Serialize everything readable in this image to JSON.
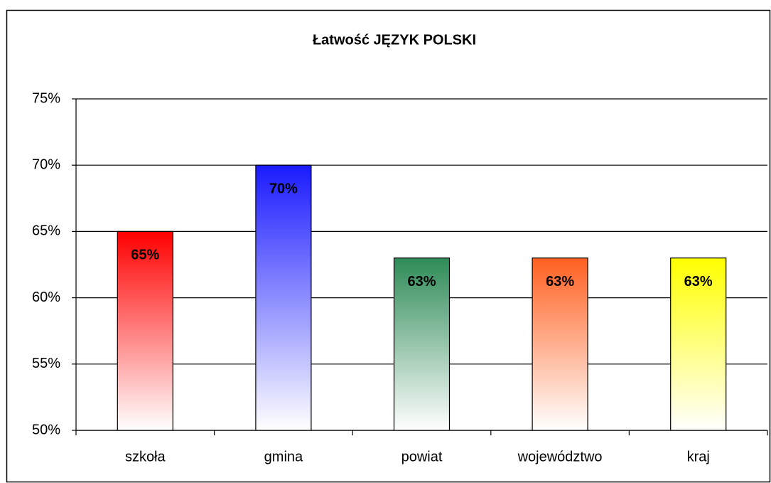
{
  "chart_data": {
    "type": "bar",
    "title": "Łatwość JĘZYK POLSKI",
    "categories": [
      "szkoła",
      "gmina",
      "powiat",
      "województwo",
      "kraj"
    ],
    "values": [
      65,
      70,
      63,
      63,
      63
    ],
    "value_labels": [
      "65%",
      "70%",
      "63%",
      "63%",
      "63%"
    ],
    "colors": [
      "#ff0000",
      "#1a1aff",
      "#2e8b57",
      "#ff6020",
      "#ffff00"
    ],
    "ylim": [
      50,
      75
    ],
    "yticks": [
      {
        "value": 50,
        "label": "50%"
      },
      {
        "value": 55,
        "label": "55%"
      },
      {
        "value": 60,
        "label": "60%"
      },
      {
        "value": 65,
        "label": "65%"
      },
      {
        "value": 70,
        "label": "70%"
      },
      {
        "value": 75,
        "label": "75%"
      }
    ],
    "grid": true
  }
}
